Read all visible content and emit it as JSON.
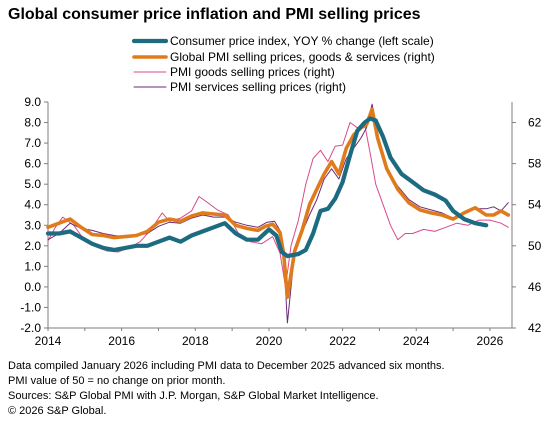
{
  "title": "Global consumer price inflation and PMI selling prices",
  "footer": {
    "line1": "Data compiled January 2026 including PMI data to December 2025 advanced six months.",
    "line2": "PMI value of 50 = no change on prior month.",
    "line3": "Sources: S&P Global PMI with J.P. Morgan, S&P Global Market Intelligence.",
    "line4": "© 2026 S&P Global."
  },
  "chart_data": {
    "type": "line",
    "title": "Global consumer price inflation and PMI selling prices",
    "x_ticks": [
      "2014",
      "2016",
      "2018",
      "2020",
      "2022",
      "2024",
      "2026"
    ],
    "xlim": [
      2014.0,
      2026.6
    ],
    "y_left": {
      "lim": [
        -2.0,
        9.0
      ],
      "ticks": [
        "-2.0",
        "-1.0",
        "0.0",
        "1.0",
        "2.0",
        "3.0",
        "4.0",
        "5.0",
        "6.0",
        "7.0",
        "8.0",
        "9.0"
      ]
    },
    "y_right": {
      "lim": [
        42,
        64
      ],
      "ticks": [
        "42",
        "46",
        "50",
        "54",
        "58",
        "62"
      ]
    },
    "grid": false,
    "legend_position": "top-left",
    "series": [
      {
        "name": "Consumer price index, YOY % change (left scale)",
        "axis": "left",
        "color": "#1d6b80",
        "x": [
          2014.0,
          2014.3,
          2014.6,
          2014.9,
          2015.2,
          2015.5,
          2015.8,
          2016.1,
          2016.4,
          2016.7,
          2017.0,
          2017.3,
          2017.6,
          2017.9,
          2018.2,
          2018.5,
          2018.8,
          2019.1,
          2019.4,
          2019.7,
          2020.0,
          2020.2,
          2020.35,
          2020.5,
          2020.8,
          2021.0,
          2021.2,
          2021.4,
          2021.6,
          2021.8,
          2022.0,
          2022.2,
          2022.4,
          2022.6,
          2022.75,
          2022.9,
          2023.1,
          2023.3,
          2023.6,
          2023.9,
          2024.2,
          2024.5,
          2024.8,
          2025.0,
          2025.3,
          2025.6,
          2025.9
        ],
        "y": [
          2.6,
          2.6,
          2.7,
          2.4,
          2.1,
          1.9,
          1.8,
          1.9,
          2.0,
          2.0,
          2.2,
          2.4,
          2.2,
          2.5,
          2.7,
          2.9,
          3.1,
          2.6,
          2.3,
          2.3,
          2.8,
          2.5,
          1.7,
          1.5,
          1.6,
          1.8,
          2.6,
          3.7,
          3.8,
          4.3,
          5.1,
          6.4,
          7.6,
          8.0,
          8.2,
          8.1,
          7.3,
          6.3,
          5.5,
          5.1,
          4.7,
          4.5,
          4.2,
          3.7,
          3.3,
          3.1,
          3.0
        ]
      },
      {
        "name": "Global PMI selling prices, goods & services (right)",
        "axis": "right",
        "color": "#e07b1c",
        "x": [
          2014.0,
          2014.3,
          2014.6,
          2014.9,
          2015.2,
          2015.5,
          2015.8,
          2016.1,
          2016.4,
          2016.7,
          2017.0,
          2017.3,
          2017.6,
          2017.9,
          2018.2,
          2018.5,
          2018.8,
          2019.1,
          2019.4,
          2019.7,
          2019.9,
          2020.1,
          2020.3,
          2020.4,
          2020.5,
          2020.7,
          2020.9,
          2021.1,
          2021.3,
          2021.5,
          2021.7,
          2021.9,
          2022.1,
          2022.3,
          2022.5,
          2022.65,
          2022.8,
          2022.95,
          2023.2,
          2023.5,
          2023.8,
          2024.1,
          2024.4,
          2024.7,
          2025.0,
          2025.3,
          2025.6,
          2025.9,
          2026.1,
          2026.3,
          2026.5
        ],
        "y": [
          51.8,
          52.2,
          52.6,
          51.8,
          51.1,
          51.0,
          50.8,
          50.9,
          51.0,
          51.4,
          52.3,
          52.6,
          52.4,
          52.9,
          53.2,
          53.1,
          53.0,
          52.0,
          51.7,
          51.5,
          51.9,
          52.1,
          51.3,
          49.2,
          45.0,
          49.5,
          51.5,
          54.0,
          55.5,
          57.0,
          58.2,
          57.0,
          59.5,
          60.8,
          61.5,
          61.8,
          63.3,
          60.5,
          57.5,
          55.5,
          54.2,
          53.5,
          53.2,
          53.0,
          52.6,
          53.2,
          53.7,
          53.0,
          53.0,
          53.4,
          53.0
        ]
      },
      {
        "name": "PMI goods selling prices (right)",
        "axis": "right",
        "color": "#d94a8a",
        "x": [
          2014.0,
          2014.2,
          2014.4,
          2014.7,
          2015.0,
          2015.3,
          2015.6,
          2015.9,
          2016.2,
          2016.5,
          2016.8,
          2017.1,
          2017.3,
          2017.6,
          2017.9,
          2018.1,
          2018.3,
          2018.6,
          2018.9,
          2019.2,
          2019.5,
          2019.8,
          2020.1,
          2020.3,
          2020.45,
          2020.6,
          2020.8,
          2021.0,
          2021.2,
          2021.4,
          2021.6,
          2021.8,
          2022.0,
          2022.2,
          2022.4,
          2022.6,
          2022.75,
          2022.9,
          2023.1,
          2023.3,
          2023.5,
          2023.7,
          2023.9,
          2024.2,
          2024.5,
          2024.8,
          2025.1,
          2025.4,
          2025.7,
          2026.0,
          2026.3,
          2026.5
        ],
        "y": [
          50.5,
          51.8,
          52.8,
          52.0,
          50.5,
          50.0,
          49.5,
          49.4,
          49.8,
          50.4,
          51.6,
          53.2,
          52.4,
          52.7,
          53.4,
          54.8,
          54.3,
          53.5,
          53.0,
          51.0,
          50.4,
          50.2,
          50.9,
          49.3,
          46.0,
          50.0,
          52.5,
          56.0,
          58.5,
          59.3,
          58.2,
          59.7,
          59.8,
          62.0,
          61.5,
          61.8,
          59.0,
          56.0,
          54.0,
          52.0,
          50.6,
          51.2,
          51.2,
          51.6,
          51.4,
          51.8,
          52.2,
          52.0,
          52.5,
          52.5,
          52.2,
          51.8
        ]
      },
      {
        "name": "PMI services selling prices (right)",
        "axis": "right",
        "color": "#6b2a7a",
        "x": [
          2014.0,
          2014.3,
          2014.6,
          2014.9,
          2015.2,
          2015.5,
          2015.8,
          2016.1,
          2016.4,
          2016.7,
          2017.0,
          2017.3,
          2017.6,
          2017.9,
          2018.2,
          2018.5,
          2018.8,
          2019.1,
          2019.4,
          2019.7,
          2019.95,
          2020.15,
          2020.3,
          2020.4,
          2020.5,
          2020.7,
          2020.9,
          2021.1,
          2021.3,
          2021.5,
          2021.7,
          2021.9,
          2022.1,
          2022.3,
          2022.5,
          2022.65,
          2022.8,
          2022.95,
          2023.2,
          2023.5,
          2023.8,
          2024.1,
          2024.4,
          2024.7,
          2025.0,
          2025.3,
          2025.6,
          2025.9,
          2026.1,
          2026.3,
          2026.5
        ],
        "y": [
          50.6,
          51.2,
          52.2,
          51.7,
          51.5,
          51.2,
          51.0,
          50.9,
          51.0,
          51.2,
          51.9,
          52.3,
          52.2,
          52.7,
          53.0,
          52.8,
          52.8,
          52.3,
          52.0,
          51.8,
          52.3,
          52.4,
          51.5,
          49.0,
          42.5,
          49.5,
          51.3,
          53.0,
          54.5,
          56.5,
          57.5,
          56.5,
          58.5,
          59.5,
          60.5,
          61.5,
          63.8,
          60.5,
          57.5,
          55.8,
          54.5,
          53.8,
          53.5,
          53.2,
          52.7,
          53.2,
          53.6,
          53.6,
          53.8,
          53.4,
          54.2
        ]
      }
    ]
  }
}
